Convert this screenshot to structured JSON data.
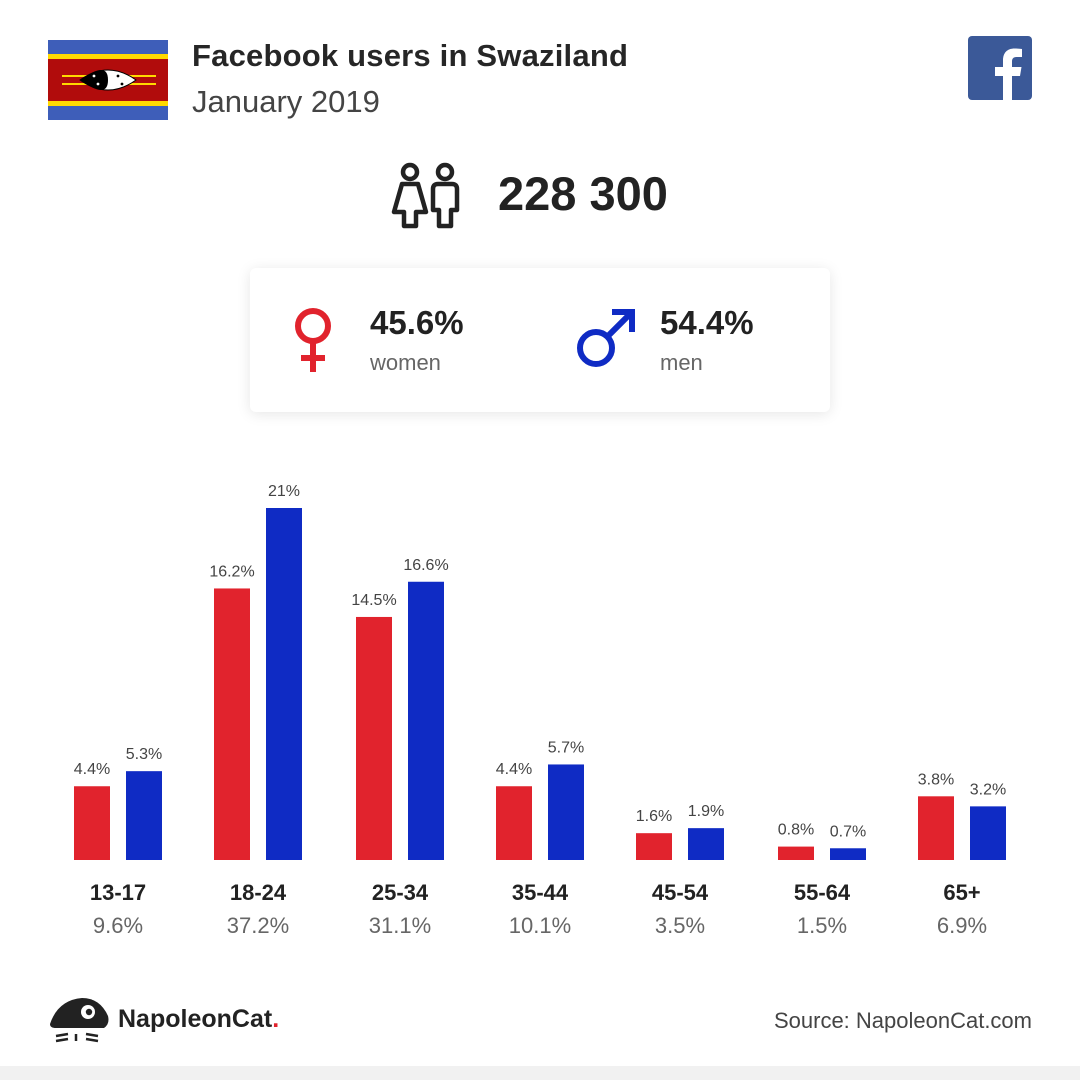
{
  "header": {
    "title": "Facebook users in Swaziland",
    "subtitle": "January 2019"
  },
  "total": {
    "value": "228 300"
  },
  "gender": {
    "women_pct": "45.6%",
    "women_label": "women",
    "men_pct": "54.4%",
    "men_label": "men"
  },
  "colors": {
    "women": "#e1232d",
    "men": "#0f2bc4",
    "facebook": "#3b5998"
  },
  "chart_data": {
    "type": "bar",
    "categories": [
      "13-17",
      "18-24",
      "25-34",
      "35-44",
      "45-54",
      "55-64",
      "65+"
    ],
    "category_totals": [
      "9.6%",
      "37.2%",
      "31.1%",
      "10.1%",
      "3.5%",
      "1.5%",
      "6.9%"
    ],
    "series": [
      {
        "values": [
          4.4,
          16.2,
          14.5,
          4.4,
          1.6,
          0.8,
          3.8
        ],
        "labels": [
          "4.4%",
          "16.2%",
          "14.5%",
          "4.4%",
          "1.6%",
          "0.8%",
          "3.8%"
        ],
        "color": "#e1232d"
      },
      {
        "values": [
          5.3,
          21,
          16.6,
          5.7,
          1.9,
          0.7,
          3.2
        ],
        "labels": [
          "5.3%",
          "21%",
          "16.6%",
          "5.7%",
          "1.9%",
          "0.7%",
          "3.2%"
        ],
        "color": "#0f2bc4"
      }
    ],
    "ylim": [
      0,
      21
    ],
    "grid": false,
    "legend": "none"
  },
  "footer": {
    "brand": "NapoleonCat",
    "brand_dot": ".",
    "source": "Source: NapoleonCat.com"
  }
}
